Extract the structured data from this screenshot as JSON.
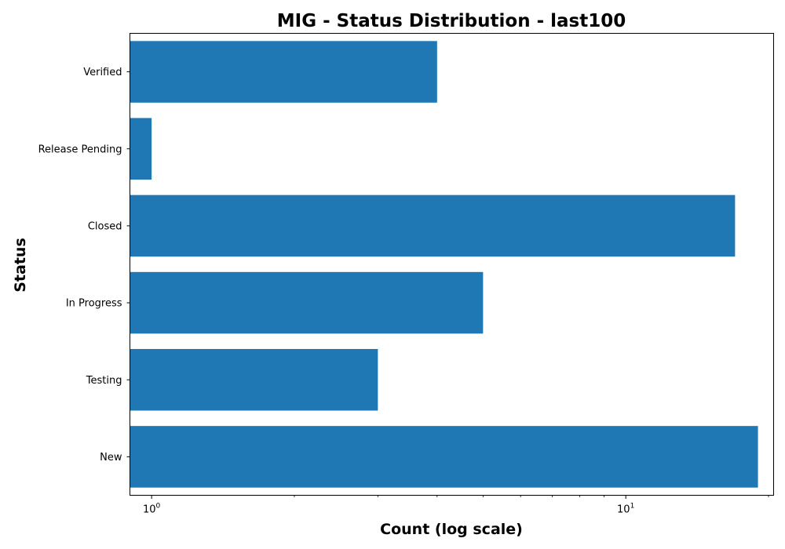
{
  "chart_data": {
    "type": "bar",
    "orientation": "horizontal",
    "title": "MIG - Status Distribution - last100",
    "xlabel": "Count (log scale)",
    "ylabel": "Status",
    "xscale": "log",
    "xlim": [
      0.9,
      20.5
    ],
    "categories": [
      "New",
      "Testing",
      "In Progress",
      "Closed",
      "Release Pending",
      "Verified"
    ],
    "values": [
      19,
      3,
      5,
      17,
      1,
      4
    ],
    "x_ticks": [
      {
        "value": 1,
        "base": "10",
        "exp": "0"
      },
      {
        "value": 10,
        "base": "10",
        "exp": "1"
      }
    ],
    "bar_color": "#1f77b4",
    "grid": false,
    "legend": "none"
  }
}
